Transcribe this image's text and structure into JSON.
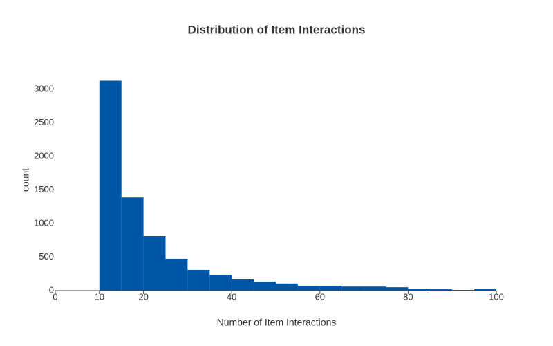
{
  "chart_data": {
    "type": "histogram",
    "title": "Distribution of Item Interactions",
    "x_label": "Number of Item Interactions",
    "y_label": "count",
    "bins": [
      10,
      15,
      20,
      25,
      30,
      35,
      40,
      45,
      50,
      55,
      60,
      65,
      70,
      75,
      80,
      85,
      90,
      95,
      100
    ],
    "counts": [
      3130,
      1390,
      815,
      475,
      310,
      235,
      175,
      135,
      105,
      70,
      70,
      60,
      60,
      50,
      30,
      20,
      10,
      30
    ],
    "color": "#0056a6",
    "xlim": [
      0,
      100
    ],
    "xticks": [
      0,
      10,
      20,
      40,
      60,
      80,
      100
    ],
    "ylim": [
      0,
      3300
    ],
    "yticks": [
      0,
      500,
      1000,
      1500,
      2000,
      2500,
      3000
    ],
    "grid": false
  }
}
